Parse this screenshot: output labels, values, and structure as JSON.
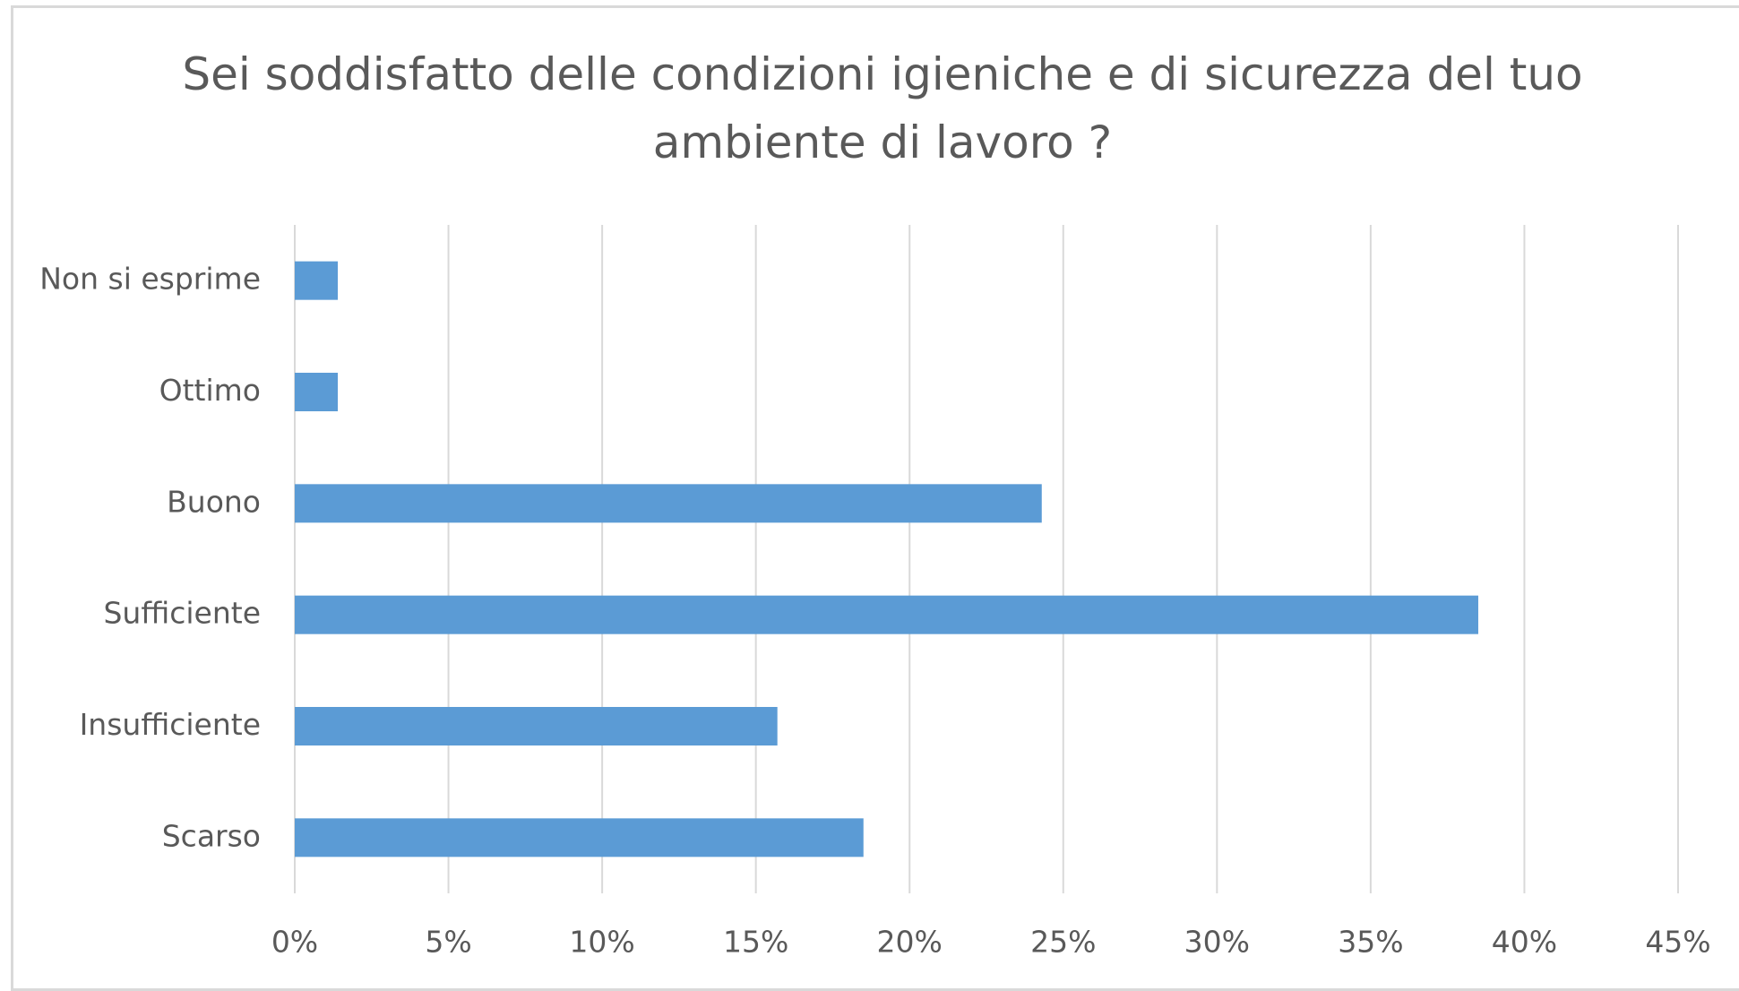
{
  "chart_data": {
    "type": "bar",
    "orientation": "horizontal",
    "title": "Sei soddisfatto delle condizioni igieniche e di sicurezza del tuo ambiente di lavoro ?",
    "categories": [
      "Non si esprime",
      "Ottimo",
      "Buono",
      "Sufficiente",
      "Insufficiente",
      "Scarso"
    ],
    "values": [
      1.4,
      1.4,
      24.3,
      38.5,
      15.7,
      18.5
    ],
    "color": "#5b9bd5",
    "xlim": [
      0,
      45
    ],
    "xticks": [
      {
        "value": 0,
        "label": "0%"
      },
      {
        "value": 5,
        "label": "5%"
      },
      {
        "value": 10,
        "label": "10%"
      },
      {
        "value": 15,
        "label": "15%"
      },
      {
        "value": 20,
        "label": "20%"
      },
      {
        "value": 25,
        "label": "25%"
      },
      {
        "value": 30,
        "label": "30%"
      },
      {
        "value": 35,
        "label": "35%"
      },
      {
        "value": 40,
        "label": "40%"
      },
      {
        "value": 45,
        "label": "45%"
      }
    ],
    "grid": true
  }
}
